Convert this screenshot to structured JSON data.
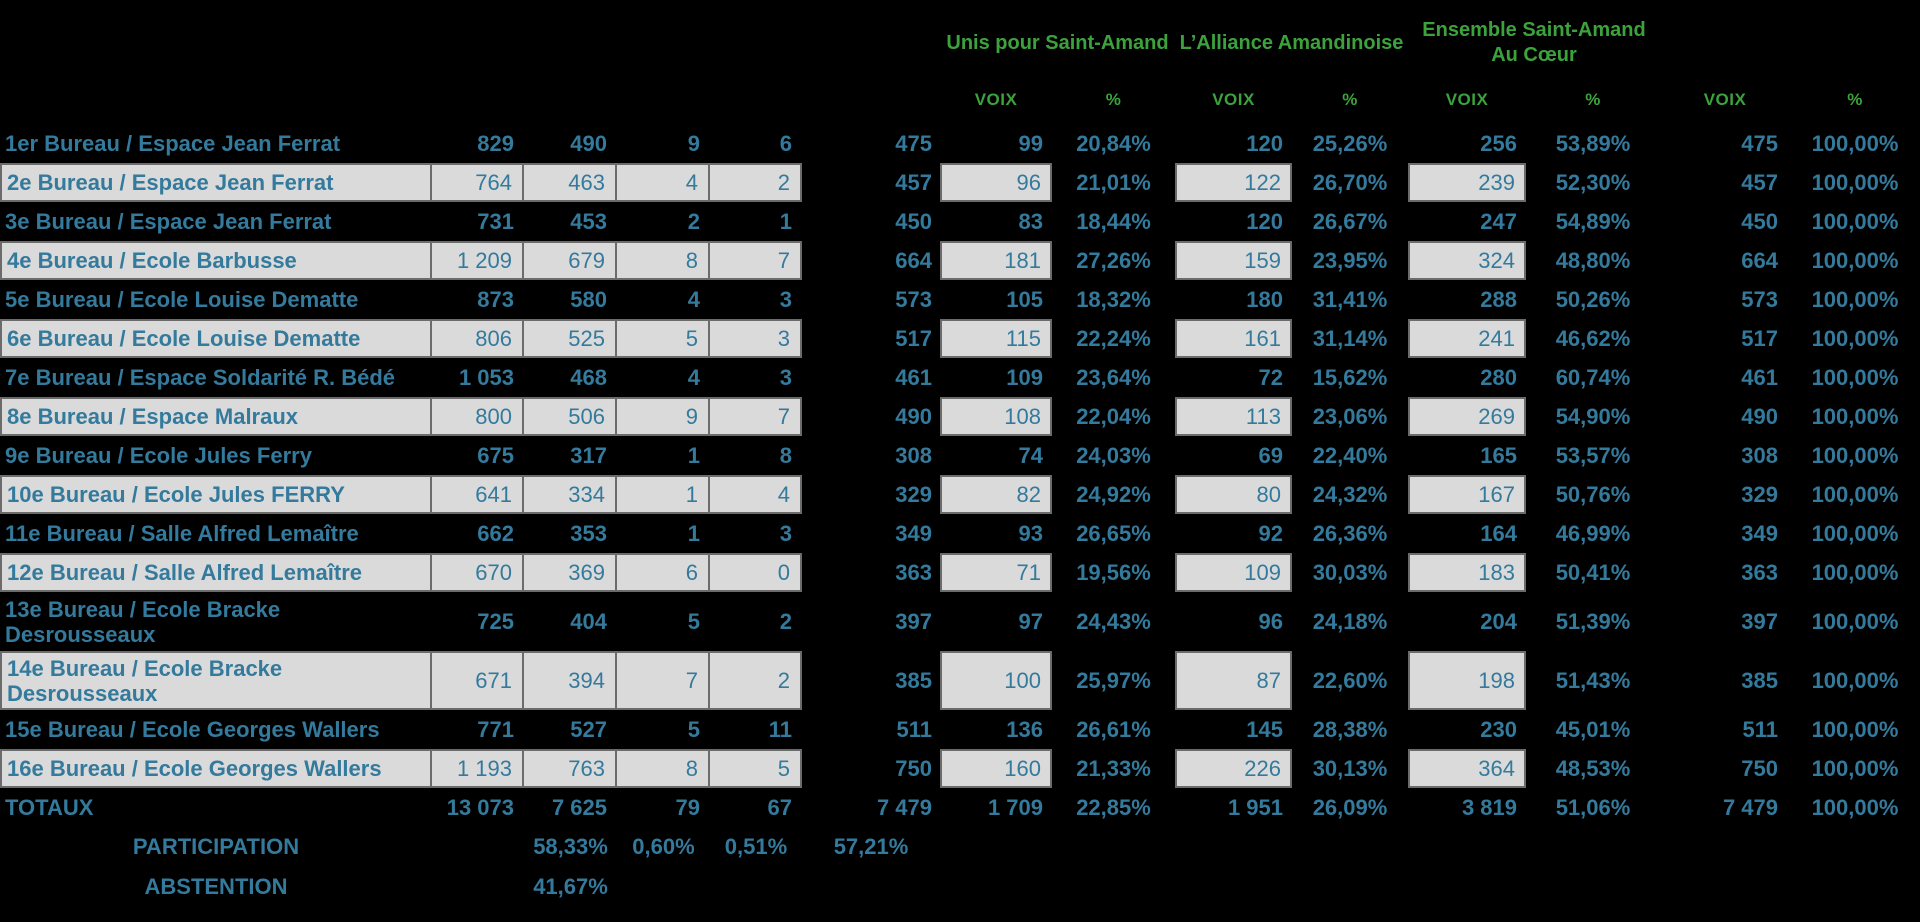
{
  "colors": {
    "background": "#000000",
    "text_teal": "#347A9C",
    "header_green": "#3CA33C",
    "alt_row_bg": "#DADADA",
    "alt_row_border": "#6B6B6B"
  },
  "chart_data": {
    "type": "table",
    "party_group_headers": [
      {
        "lines": [
          "Unis pour Saint-Amand",
          ""
        ]
      },
      {
        "lines": [
          "L’Alliance Amandinoise",
          ""
        ]
      },
      {
        "lines": [
          "Ensemble Saint-Amand",
          "Au Cœur"
        ]
      }
    ],
    "sub_headers": [
      "VOIX",
      "%",
      "VOIX",
      "%",
      "VOIX",
      "%",
      "VOIX",
      "%"
    ],
    "rows": [
      [
        "1er Bureau / Espace Jean Ferrat",
        "829",
        "490",
        "9",
        "6",
        "475",
        "99",
        "20,84%",
        "120",
        "25,26%",
        "256",
        "53,89%",
        "475",
        "100,00%"
      ],
      [
        "2e Bureau / Espace Jean Ferrat",
        "764",
        "463",
        "4",
        "2",
        "457",
        "96",
        "21,01%",
        "122",
        "26,70%",
        "239",
        "52,30%",
        "457",
        "100,00%"
      ],
      [
        "3e Bureau / Espace Jean Ferrat",
        "731",
        "453",
        "2",
        "1",
        "450",
        "83",
        "18,44%",
        "120",
        "26,67%",
        "247",
        "54,89%",
        "450",
        "100,00%"
      ],
      [
        "4e Bureau / Ecole Barbusse",
        "1 209",
        "679",
        "8",
        "7",
        "664",
        "181",
        "27,26%",
        "159",
        "23,95%",
        "324",
        "48,80%",
        "664",
        "100,00%"
      ],
      [
        "5e Bureau / Ecole Louise Dematte",
        "873",
        "580",
        "4",
        "3",
        "573",
        "105",
        "18,32%",
        "180",
        "31,41%",
        "288",
        "50,26%",
        "573",
        "100,00%"
      ],
      [
        "6e Bureau / Ecole Louise Dematte",
        "806",
        "525",
        "5",
        "3",
        "517",
        "115",
        "22,24%",
        "161",
        "31,14%",
        "241",
        "46,62%",
        "517",
        "100,00%"
      ],
      [
        "7e Bureau / Espace Soldarité R. Bédé",
        "1 053",
        "468",
        "4",
        "3",
        "461",
        "109",
        "23,64%",
        "72",
        "15,62%",
        "280",
        "60,74%",
        "461",
        "100,00%"
      ],
      [
        "8e Bureau / Espace Malraux",
        "800",
        "506",
        "9",
        "7",
        "490",
        "108",
        "22,04%",
        "113",
        "23,06%",
        "269",
        "54,90%",
        "490",
        "100,00%"
      ],
      [
        "9e Bureau / Ecole Jules Ferry",
        "675",
        "317",
        "1",
        "8",
        "308",
        "74",
        "24,03%",
        "69",
        "22,40%",
        "165",
        "53,57%",
        "308",
        "100,00%"
      ],
      [
        "10e Bureau / Ecole Jules FERRY",
        "641",
        "334",
        "1",
        "4",
        "329",
        "82",
        "24,92%",
        "80",
        "24,32%",
        "167",
        "50,76%",
        "329",
        "100,00%"
      ],
      [
        "11e Bureau / Salle Alfred Lemaître",
        "662",
        "353",
        "1",
        "3",
        "349",
        "93",
        "26,65%",
        "92",
        "26,36%",
        "164",
        "46,99%",
        "349",
        "100,00%"
      ],
      [
        "12e Bureau / Salle Alfred Lemaître",
        "670",
        "369",
        "6",
        "0",
        "363",
        "71",
        "19,56%",
        "109",
        "30,03%",
        "183",
        "50,41%",
        "363",
        "100,00%"
      ],
      [
        "13e Bureau / Ecole Bracke\nDesrousseaux",
        "725",
        "404",
        "5",
        "2",
        "397",
        "97",
        "24,43%",
        "96",
        "24,18%",
        "204",
        "51,39%",
        "397",
        "100,00%"
      ],
      [
        "14e Bureau / Ecole Bracke\nDesrousseaux",
        "671",
        "394",
        "7",
        "2",
        "385",
        "100",
        "25,97%",
        "87",
        "22,60%",
        "198",
        "51,43%",
        "385",
        "100,00%"
      ],
      [
        "15e Bureau / Ecole Georges Wallers",
        "771",
        "527",
        "5",
        "11",
        "511",
        "136",
        "26,61%",
        "145",
        "28,38%",
        "230",
        "45,01%",
        "511",
        "100,00%"
      ],
      [
        "16e Bureau / Ecole Georges Wallers",
        "1 193",
        "763",
        "8",
        "5",
        "750",
        "160",
        "21,33%",
        "226",
        "30,13%",
        "364",
        "48,53%",
        "750",
        "100,00%"
      ]
    ],
    "totals_row": [
      "TOTAUX",
      "13 073",
      "7 625",
      "79",
      "67",
      "7 479",
      "1 709",
      "22,85%",
      "1 951",
      "26,09%",
      "3 819",
      "51,06%",
      "7 479",
      "100,00%"
    ],
    "participation_row": [
      "PARTICIPATION",
      "",
      "58,33%",
      "0,60%",
      "0,51%",
      "57,21%"
    ],
    "abstention_row": [
      "ABSTENTION",
      "",
      "41,67%"
    ]
  }
}
